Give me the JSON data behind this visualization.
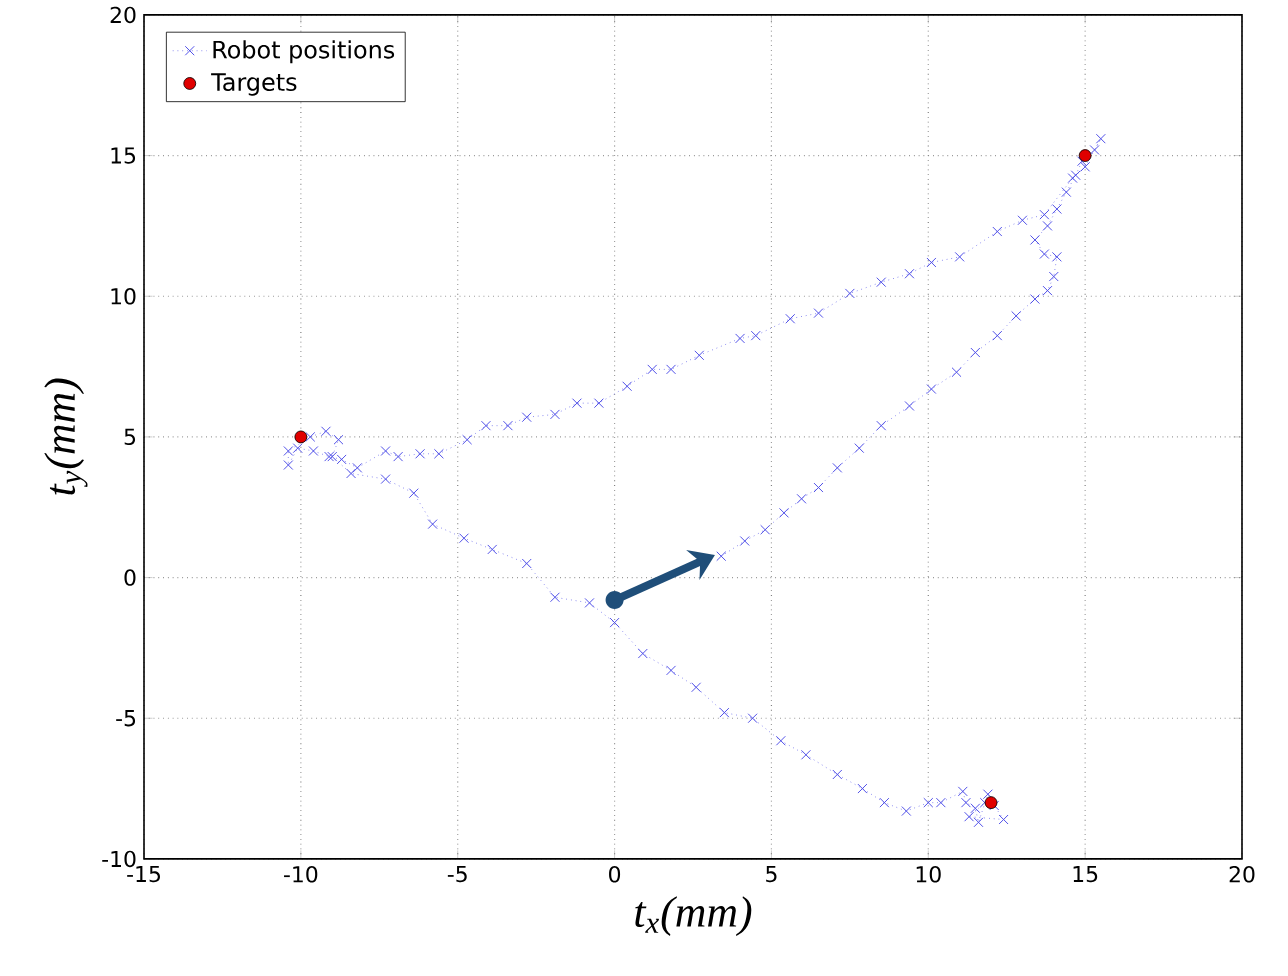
{
  "chart_data": {
    "type": "scatter",
    "xlabel": "t$_{x}$(mm)",
    "ylabel": "t$_{y}$(mm)",
    "xlim": [
      -15,
      20
    ],
    "ylim": [
      -10,
      20
    ],
    "xticks": [
      -15,
      -10,
      -5,
      0,
      5,
      10,
      15,
      20
    ],
    "yticks": [
      -10,
      -5,
      0,
      5,
      10,
      15,
      20
    ],
    "grid": true,
    "legend": "top left",
    "series": [
      {
        "name": "Robot positions",
        "type": "line",
        "marker": "cross",
        "line_style": "dotted",
        "color": "#5050e8",
        "x": [
          3.4,
          4.15,
          4.8,
          5.4,
          5.96,
          6.5,
          7.1,
          7.8,
          8.5,
          9.4,
          10.1,
          10.9,
          11.5,
          12.2,
          12.8,
          13.4,
          13.8,
          14.0,
          14.1,
          13.7,
          13.4,
          13.8,
          14.1,
          14.4,
          14.7,
          14.9,
          15.3,
          15.5,
          15.0,
          14.6,
          13.7,
          13.0,
          12.2,
          11.0,
          10.1,
          9.4,
          8.5,
          7.5,
          6.5,
          5.6,
          4.5,
          4.0,
          2.7,
          1.8,
          1.2,
          0.4,
          -0.5,
          -1.2,
          -1.9,
          -2.8,
          -3.4,
          -4.1,
          -4.7,
          -5.6,
          -6.2,
          -6.9,
          -7.3,
          -8.2,
          -8.7,
          -9.1,
          -9.6,
          -10.1,
          -10.4,
          -10.4,
          -9.7,
          -9.2,
          -8.8,
          -9.0,
          -8.4,
          -7.3,
          -6.4,
          -5.8,
          -4.8,
          -3.9,
          -2.8,
          -1.9,
          -0.8,
          0.0,
          0.9,
          1.8,
          2.6,
          3.5,
          4.4,
          5.3,
          6.1,
          7.1,
          7.9,
          8.6,
          9.3,
          10.0,
          10.4,
          11.1,
          11.2,
          11.5,
          11.6,
          11.9,
          12.1,
          12.4,
          11.3,
          11.8
        ],
        "values": [
          0.76,
          1.3,
          1.7,
          2.3,
          2.8,
          3.2,
          3.9,
          4.6,
          5.4,
          6.1,
          6.7,
          7.3,
          8.0,
          8.6,
          9.3,
          9.9,
          10.2,
          10.7,
          11.4,
          11.5,
          12.0,
          12.5,
          13.1,
          13.7,
          14.3,
          14.8,
          15.2,
          15.6,
          14.6,
          14.2,
          12.9,
          12.7,
          12.3,
          11.4,
          11.2,
          10.8,
          10.5,
          10.1,
          9.4,
          9.2,
          8.6,
          8.5,
          7.9,
          7.4,
          7.4,
          6.8,
          6.2,
          6.2,
          5.8,
          5.7,
          5.4,
          5.4,
          4.9,
          4.4,
          4.4,
          4.3,
          4.5,
          3.9,
          4.2,
          4.3,
          4.5,
          4.6,
          4.0,
          4.5,
          5.0,
          5.2,
          4.9,
          4.3,
          3.7,
          3.5,
          3.0,
          1.9,
          1.4,
          1.0,
          0.5,
          -0.7,
          -0.9,
          -1.6,
          -2.7,
          -3.3,
          -3.9,
          -4.8,
          -5.0,
          -5.8,
          -6.3,
          -7.0,
          -7.5,
          -8.0,
          -8.3,
          -8.0,
          -8.0,
          -7.6,
          -8.0,
          -8.2,
          -8.7,
          -7.7,
          -8.1,
          -8.6,
          -8.5,
          -8.0
        ]
      },
      {
        "name": "Targets",
        "marker": "circle",
        "color": "#e00000",
        "x": [
          -10,
          15,
          12
        ],
        "values": [
          5,
          15,
          -8
        ]
      }
    ]
  }
}
